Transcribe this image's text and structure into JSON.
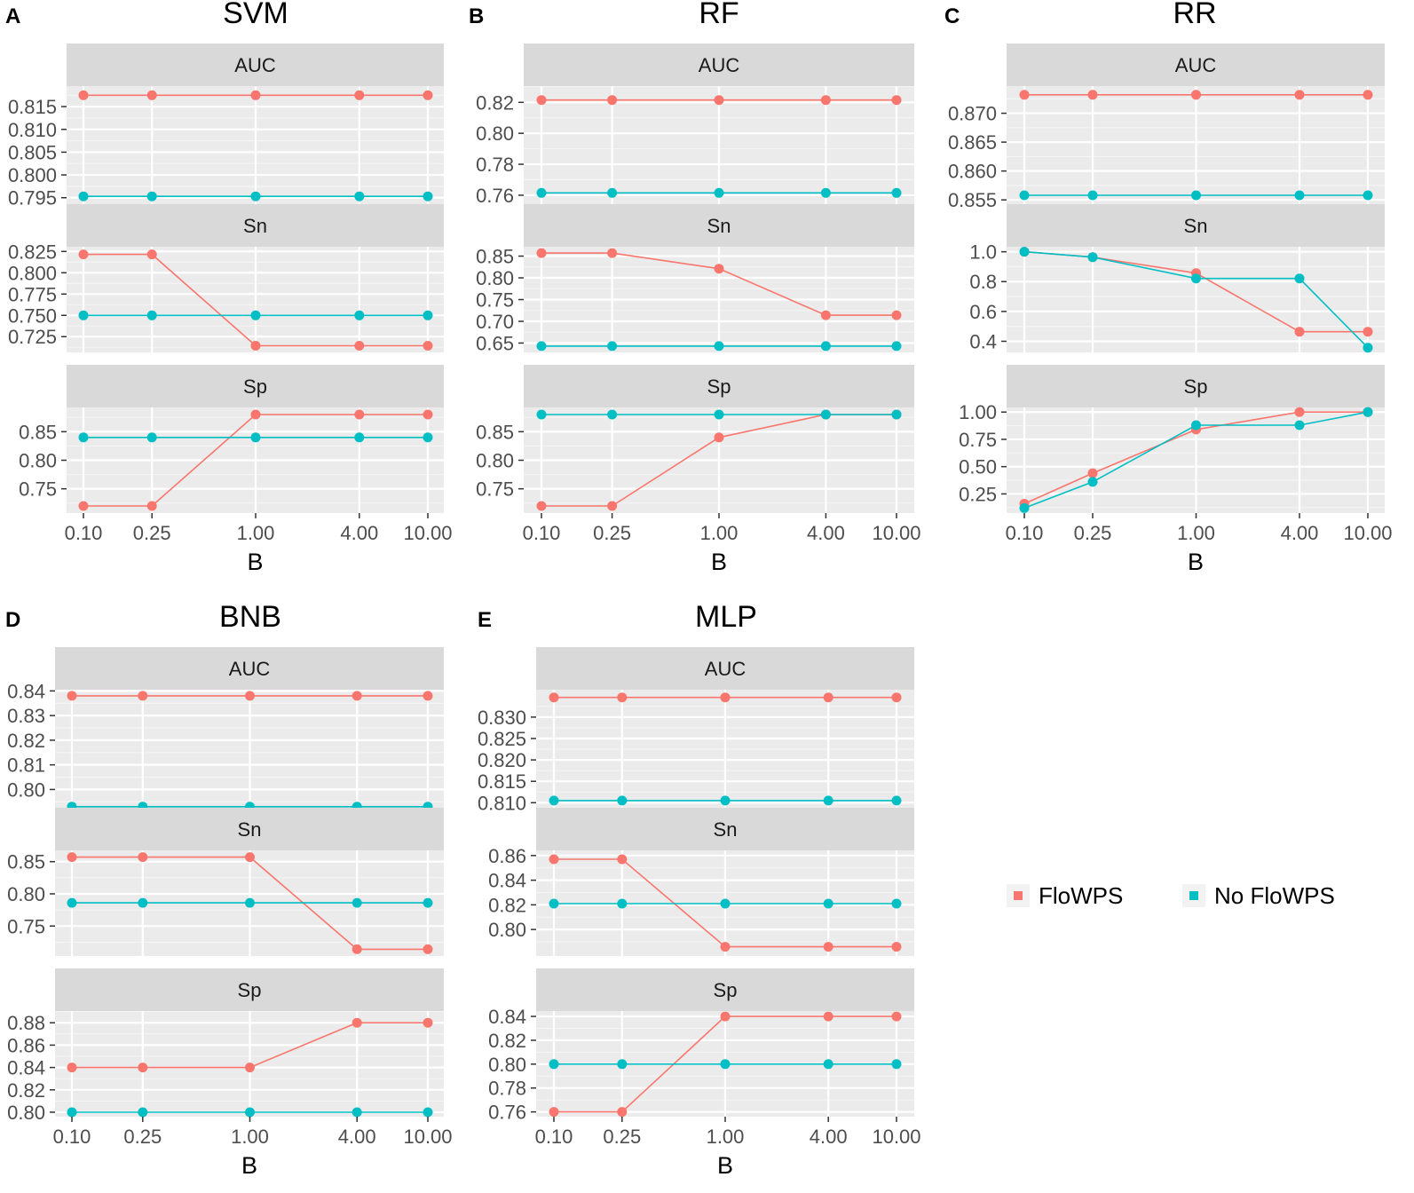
{
  "legend": {
    "items": [
      {
        "label": "FloWPS",
        "color": "#F8766D"
      },
      {
        "label": "No FloWPS",
        "color": "#00BFC4"
      }
    ]
  },
  "chart_data": [
    {
      "tag": "A",
      "title": "SVM",
      "type": "line",
      "xlabel": "B",
      "x": [
        0.1,
        0.25,
        1.0,
        4.0,
        10.0
      ],
      "x_tick_labels": [
        "0.10",
        "0.25",
        "1.00",
        "4.00",
        "10.00"
      ],
      "x_scale": "log",
      "facets": [
        {
          "label": "AUC",
          "ylim": [
            0.793,
            0.8195
          ],
          "y_ticks": [
            0.795,
            0.8,
            0.805,
            0.81,
            0.815
          ],
          "y_tick_labels": [
            "0.795",
            "0.800",
            "0.805",
            "0.810",
            "0.815"
          ],
          "series": [
            {
              "name": "FloWPS",
              "values": [
                0.8175,
                0.8175,
                0.8175,
                0.8175,
                0.8175
              ]
            },
            {
              "name": "No FloWPS",
              "values": [
                0.7953,
                0.7953,
                0.7953,
                0.7953,
                0.7953
              ]
            }
          ]
        },
        {
          "label": "Sn",
          "ylim": [
            0.7065,
            0.8305
          ],
          "y_ticks": [
            0.725,
            0.75,
            0.775,
            0.8,
            0.825
          ],
          "y_tick_labels": [
            "0.725",
            "0.750",
            "0.775",
            "0.800",
            "0.825"
          ],
          "series": [
            {
              "name": "FloWPS",
              "values": [
                0.8215,
                0.8215,
                0.7143,
                0.7143,
                0.7143
              ]
            },
            {
              "name": "No FloWPS",
              "values": [
                0.75,
                0.75,
                0.75,
                0.75,
                0.75
              ]
            }
          ]
        },
        {
          "label": "Sp",
          "ylim": [
            0.7075,
            0.8925
          ],
          "y_ticks": [
            0.75,
            0.8,
            0.85
          ],
          "y_tick_labels": [
            "0.75",
            "0.80",
            "0.85"
          ],
          "series": [
            {
              "name": "FloWPS",
              "values": [
                0.72,
                0.72,
                0.88,
                0.88,
                0.88
              ]
            },
            {
              "name": "No FloWPS",
              "values": [
                0.84,
                0.84,
                0.84,
                0.84,
                0.84
              ]
            }
          ]
        }
      ]
    },
    {
      "tag": "B",
      "title": "RF",
      "type": "line",
      "xlabel": "B",
      "x": [
        0.1,
        0.25,
        1.0,
        4.0,
        10.0
      ],
      "x_tick_labels": [
        "0.10",
        "0.25",
        "1.00",
        "4.00",
        "10.00"
      ],
      "x_scale": "log",
      "facets": [
        {
          "label": "AUC",
          "ylim": [
            0.7525,
            0.8305
          ],
          "y_ticks": [
            0.76,
            0.78,
            0.8,
            0.82
          ],
          "y_tick_labels": [
            "0.76",
            "0.78",
            "0.80",
            "0.82"
          ],
          "series": [
            {
              "name": "FloWPS",
              "values": [
                0.8215,
                0.8215,
                0.8215,
                0.8215,
                0.8215
              ]
            },
            {
              "name": "No FloWPS",
              "values": [
                0.7615,
                0.7615,
                0.7615,
                0.7615,
                0.7615
              ]
            }
          ]
        },
        {
          "label": "Sn",
          "ylim": [
            0.6285,
            0.8715
          ],
          "y_ticks": [
            0.65,
            0.7,
            0.75,
            0.8,
            0.85
          ],
          "y_tick_labels": [
            "0.65",
            "0.70",
            "0.75",
            "0.80",
            "0.85"
          ],
          "series": [
            {
              "name": "FloWPS",
              "values": [
                0.857,
                0.857,
                0.821,
                0.714,
                0.714
              ]
            },
            {
              "name": "No FloWPS",
              "values": [
                0.643,
                0.643,
                0.643,
                0.643,
                0.643
              ]
            }
          ]
        },
        {
          "label": "Sp",
          "ylim": [
            0.7075,
            0.8925
          ],
          "y_ticks": [
            0.75,
            0.8,
            0.85
          ],
          "y_tick_labels": [
            "0.75",
            "0.80",
            "0.85"
          ],
          "series": [
            {
              "name": "FloWPS",
              "values": [
                0.72,
                0.72,
                0.84,
                0.88,
                0.88
              ]
            },
            {
              "name": "No FloWPS",
              "values": [
                0.88,
                0.88,
                0.88,
                0.88,
                0.88
              ]
            }
          ]
        }
      ]
    },
    {
      "tag": "C",
      "title": "RR",
      "type": "line",
      "xlabel": "B",
      "x": [
        0.1,
        0.25,
        1.0,
        4.0,
        10.0
      ],
      "x_tick_labels": [
        "0.10",
        "0.25",
        "1.00",
        "4.00",
        "10.00"
      ],
      "x_scale": "log",
      "facets": [
        {
          "label": "AUC",
          "ylim": [
            0.8538,
            0.8747
          ],
          "y_ticks": [
            0.855,
            0.86,
            0.865,
            0.87
          ],
          "y_tick_labels": [
            "0.855",
            "0.860",
            "0.865",
            "0.870"
          ],
          "series": [
            {
              "name": "FloWPS",
              "values": [
                0.8732,
                0.8732,
                0.8732,
                0.8732,
                0.8732
              ]
            },
            {
              "name": "No FloWPS",
              "values": [
                0.8558,
                0.8558,
                0.8558,
                0.8558,
                0.8558
              ]
            }
          ]
        },
        {
          "label": "Sn",
          "ylim": [
            0.3255,
            1.0335
          ],
          "y_ticks": [
            0.4,
            0.6,
            0.8,
            1.0
          ],
          "y_tick_labels": [
            "0.4",
            "0.6",
            "0.8",
            "1.0"
          ],
          "series": [
            {
              "name": "FloWPS",
              "values": [
                1.0,
                0.964,
                0.857,
                0.464,
                0.464
              ]
            },
            {
              "name": "No FloWPS",
              "values": [
                1.0,
                0.964,
                0.821,
                0.821,
                0.357
              ]
            }
          ]
        },
        {
          "label": "Sp",
          "ylim": [
            0.0745,
            1.0425
          ],
          "y_ticks": [
            0.25,
            0.5,
            0.75,
            1.0
          ],
          "y_tick_labels": [
            "0.25",
            "0.50",
            "0.75",
            "1.00"
          ],
          "series": [
            {
              "name": "FloWPS",
              "values": [
                0.16,
                0.44,
                0.84,
                1.0,
                1.0
              ]
            },
            {
              "name": "No FloWPS",
              "values": [
                0.12,
                0.36,
                0.88,
                0.88,
                1.0
              ]
            }
          ]
        }
      ]
    },
    {
      "tag": "D",
      "title": "BNB",
      "type": "line",
      "xlabel": "B",
      "x": [
        0.1,
        0.25,
        1.0,
        4.0,
        10.0
      ],
      "x_tick_labels": [
        "0.10",
        "0.25",
        "1.00",
        "4.00",
        "10.00"
      ],
      "x_scale": "log",
      "facets": [
        {
          "label": "AUC",
          "ylim": [
            0.7915,
            0.8405
          ],
          "y_ticks": [
            0.8,
            0.81,
            0.82,
            0.83,
            0.84
          ],
          "y_tick_labels": [
            "0.80",
            "0.81",
            "0.82",
            "0.83",
            "0.84"
          ],
          "series": [
            {
              "name": "FloWPS",
              "values": [
                0.838,
                0.838,
                0.838,
                0.838,
                0.838
              ]
            },
            {
              "name": "No FloWPS",
              "values": [
                0.793,
                0.793,
                0.793,
                0.793,
                0.793
              ]
            }
          ]
        },
        {
          "label": "Sn",
          "ylim": [
            0.7035,
            0.8675
          ],
          "y_ticks": [
            0.75,
            0.8,
            0.85
          ],
          "y_tick_labels": [
            "0.75",
            "0.80",
            "0.85"
          ],
          "series": [
            {
              "name": "FloWPS",
              "values": [
                0.857,
                0.857,
                0.857,
                0.714,
                0.714
              ]
            },
            {
              "name": "No FloWPS",
              "values": [
                0.786,
                0.786,
                0.786,
                0.786,
                0.786
              ]
            }
          ]
        },
        {
          "label": "Sp",
          "ylim": [
            0.796,
            0.8905
          ],
          "y_ticks": [
            0.8,
            0.82,
            0.84,
            0.86,
            0.88
          ],
          "y_tick_labels": [
            "0.80",
            "0.82",
            "0.84",
            "0.86",
            "0.88"
          ],
          "series": [
            {
              "name": "FloWPS",
              "values": [
                0.84,
                0.84,
                0.84,
                0.88,
                0.88
              ]
            },
            {
              "name": "No FloWPS",
              "values": [
                0.8,
                0.8,
                0.8,
                0.8,
                0.8
              ]
            }
          ]
        }
      ]
    },
    {
      "tag": "E",
      "title": "MLP",
      "type": "line",
      "xlabel": "B",
      "x": [
        0.1,
        0.25,
        1.0,
        4.0,
        10.0
      ],
      "x_tick_labels": [
        "0.10",
        "0.25",
        "1.00",
        "4.00",
        "10.00"
      ],
      "x_scale": "log",
      "facets": [
        {
          "label": "AUC",
          "ylim": [
            0.8082,
            0.8364
          ],
          "y_ticks": [
            0.81,
            0.815,
            0.82,
            0.825,
            0.83
          ],
          "y_tick_labels": [
            "0.810",
            "0.815",
            "0.820",
            "0.825",
            "0.830"
          ],
          "series": [
            {
              "name": "FloWPS",
              "values": [
                0.8346,
                0.8346,
                0.8346,
                0.8346,
                0.8346
              ]
            },
            {
              "name": "No FloWPS",
              "values": [
                0.8105,
                0.8105,
                0.8105,
                0.8105,
                0.8105
              ]
            }
          ]
        },
        {
          "label": "Sn",
          "ylim": [
            0.7785,
            0.8642
          ],
          "y_ticks": [
            0.8,
            0.82,
            0.84,
            0.86
          ],
          "y_tick_labels": [
            "0.80",
            "0.82",
            "0.84",
            "0.86"
          ],
          "series": [
            {
              "name": "FloWPS",
              "values": [
                0.857,
                0.857,
                0.786,
                0.786,
                0.786
              ]
            },
            {
              "name": "No FloWPS",
              "values": [
                0.821,
                0.821,
                0.821,
                0.821,
                0.821
              ]
            }
          ]
        },
        {
          "label": "Sp",
          "ylim": [
            0.756,
            0.8445
          ],
          "y_ticks": [
            0.76,
            0.78,
            0.8,
            0.82,
            0.84
          ],
          "y_tick_labels": [
            "0.76",
            "0.78",
            "0.80",
            "0.82",
            "0.84"
          ],
          "series": [
            {
              "name": "FloWPS",
              "values": [
                0.76,
                0.76,
                0.84,
                0.84,
                0.84
              ]
            },
            {
              "name": "No FloWPS",
              "values": [
                0.8,
                0.8,
                0.8,
                0.8,
                0.8
              ]
            }
          ]
        }
      ]
    }
  ]
}
